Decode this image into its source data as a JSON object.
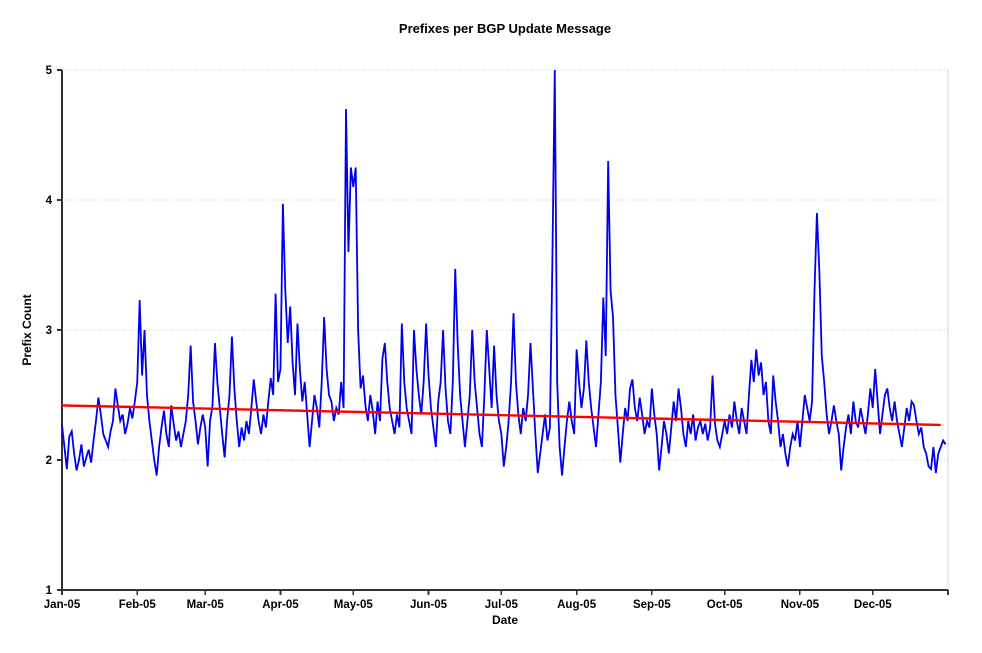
{
  "chart_data": {
    "type": "line",
    "title": "Prefixes per BGP Update Message",
    "xlabel": "Date",
    "ylabel": "Prefix Count",
    "ylim": [
      1,
      5
    ],
    "y_ticks": [
      1,
      2,
      3,
      4,
      5
    ],
    "x_tick_labels": [
      "Jan-05",
      "Feb-05",
      "Mar-05",
      "Apr-05",
      "May-05",
      "Jun-05",
      "Jul-05",
      "Aug-05",
      "Sep-05",
      "Oct-05",
      "Nov-05",
      "Dec-05"
    ],
    "x_tick_days": [
      1,
      32,
      60,
      91,
      121,
      152,
      182,
      213,
      244,
      274,
      305,
      335
    ],
    "days_in_year": 365,
    "grid": "horizontal-dotted",
    "legend": "none",
    "colors": {
      "series": "#0000ee",
      "trend": "#ff0000",
      "gridline": "#cccccc",
      "axis": "#333333",
      "plot_border": "#d9d9d9",
      "background": "#ffffff"
    },
    "series": [
      {
        "name": "Prefix Count (daily)",
        "color": "#0000ee",
        "values": [
          2.27,
          2.1,
          1.93,
          2.18,
          2.22,
          2.05,
          1.92,
          2.0,
          2.12,
          1.95,
          2.02,
          2.08,
          1.98,
          2.15,
          2.3,
          2.48,
          2.35,
          2.2,
          2.15,
          2.1,
          2.22,
          2.3,
          2.55,
          2.42,
          2.3,
          2.35,
          2.2,
          2.28,
          2.4,
          2.32,
          2.45,
          2.6,
          3.23,
          2.65,
          3.0,
          2.5,
          2.3,
          2.15,
          2.0,
          1.88,
          2.1,
          2.25,
          2.38,
          2.2,
          2.1,
          2.42,
          2.28,
          2.15,
          2.22,
          2.1,
          2.2,
          2.3,
          2.5,
          2.88,
          2.45,
          2.3,
          2.12,
          2.25,
          2.35,
          2.25,
          1.95,
          2.3,
          2.42,
          2.9,
          2.6,
          2.4,
          2.2,
          2.02,
          2.3,
          2.5,
          2.95,
          2.55,
          2.3,
          2.1,
          2.25,
          2.15,
          2.3,
          2.2,
          2.4,
          2.62,
          2.45,
          2.3,
          2.2,
          2.35,
          2.25,
          2.45,
          2.63,
          2.5,
          3.28,
          2.6,
          2.7,
          3.97,
          3.3,
          2.9,
          3.18,
          2.75,
          2.5,
          3.05,
          2.7,
          2.45,
          2.6,
          2.35,
          2.1,
          2.3,
          2.5,
          2.4,
          2.25,
          2.6,
          3.1,
          2.7,
          2.5,
          2.45,
          2.3,
          2.4,
          2.35,
          2.6,
          2.4,
          4.7,
          3.6,
          4.25,
          4.1,
          4.25,
          3.0,
          2.55,
          2.65,
          2.42,
          2.3,
          2.5,
          2.38,
          2.2,
          2.45,
          2.3,
          2.78,
          2.9,
          2.6,
          2.4,
          2.3,
          2.2,
          2.35,
          2.25,
          3.05,
          2.6,
          2.4,
          2.3,
          2.2,
          3.0,
          2.7,
          2.5,
          2.35,
          2.6,
          3.05,
          2.65,
          2.4,
          2.25,
          2.1,
          2.45,
          2.6,
          3.0,
          2.55,
          2.3,
          2.2,
          2.6,
          3.47,
          2.9,
          2.5,
          2.3,
          2.1,
          2.3,
          2.5,
          3.0,
          2.6,
          2.4,
          2.2,
          2.1,
          2.5,
          3.0,
          2.7,
          2.4,
          2.88,
          2.5,
          2.3,
          2.2,
          1.95,
          2.1,
          2.3,
          2.6,
          3.13,
          2.6,
          2.35,
          2.2,
          2.4,
          2.3,
          2.5,
          2.9,
          2.55,
          2.2,
          1.9,
          2.05,
          2.2,
          2.35,
          2.15,
          2.25,
          3.5,
          5.0,
          2.6,
          2.1,
          1.88,
          2.1,
          2.3,
          2.45,
          2.3,
          2.2,
          2.85,
          2.6,
          2.4,
          2.55,
          2.92,
          2.6,
          2.4,
          2.25,
          2.1,
          2.35,
          2.6,
          3.25,
          2.8,
          4.3,
          3.3,
          3.1,
          2.5,
          2.25,
          1.98,
          2.2,
          2.4,
          2.3,
          2.55,
          2.62,
          2.4,
          2.3,
          2.48,
          2.35,
          2.2,
          2.3,
          2.25,
          2.55,
          2.35,
          2.2,
          1.92,
          2.1,
          2.3,
          2.2,
          2.05,
          2.25,
          2.45,
          2.3,
          2.55,
          2.4,
          2.2,
          2.1,
          2.3,
          2.2,
          2.35,
          2.15,
          2.25,
          2.3,
          2.2,
          2.28,
          2.15,
          2.25,
          2.65,
          2.28,
          2.15,
          2.1,
          2.2,
          2.3,
          2.2,
          2.35,
          2.25,
          2.45,
          2.3,
          2.2,
          2.4,
          2.3,
          2.2,
          2.5,
          2.77,
          2.6,
          2.85,
          2.65,
          2.75,
          2.5,
          2.6,
          2.3,
          2.2,
          2.65,
          2.45,
          2.3,
          2.1,
          2.2,
          2.05,
          1.95,
          2.1,
          2.2,
          2.15,
          2.3,
          2.1,
          2.3,
          2.5,
          2.4,
          2.3,
          2.45,
          3.3,
          3.9,
          3.45,
          2.8,
          2.6,
          2.35,
          2.2,
          2.3,
          2.42,
          2.3,
          2.2,
          1.92,
          2.1,
          2.25,
          2.35,
          2.2,
          2.45,
          2.3,
          2.25,
          2.4,
          2.3,
          2.2,
          2.35,
          2.55,
          2.4,
          2.7,
          2.45,
          2.2,
          2.35,
          2.5,
          2.55,
          2.4,
          2.3,
          2.45,
          2.3,
          2.2,
          2.1,
          2.25,
          2.4,
          2.3,
          2.45,
          2.42,
          2.3,
          2.2,
          2.25,
          2.1,
          2.05,
          1.95,
          1.93,
          2.1,
          1.9,
          2.05,
          2.1,
          2.15,
          2.12
        ]
      },
      {
        "name": "Linear trend",
        "type": "linear_trend",
        "color": "#ff0000",
        "start_value": 2.42,
        "end_value": 2.27
      }
    ]
  }
}
